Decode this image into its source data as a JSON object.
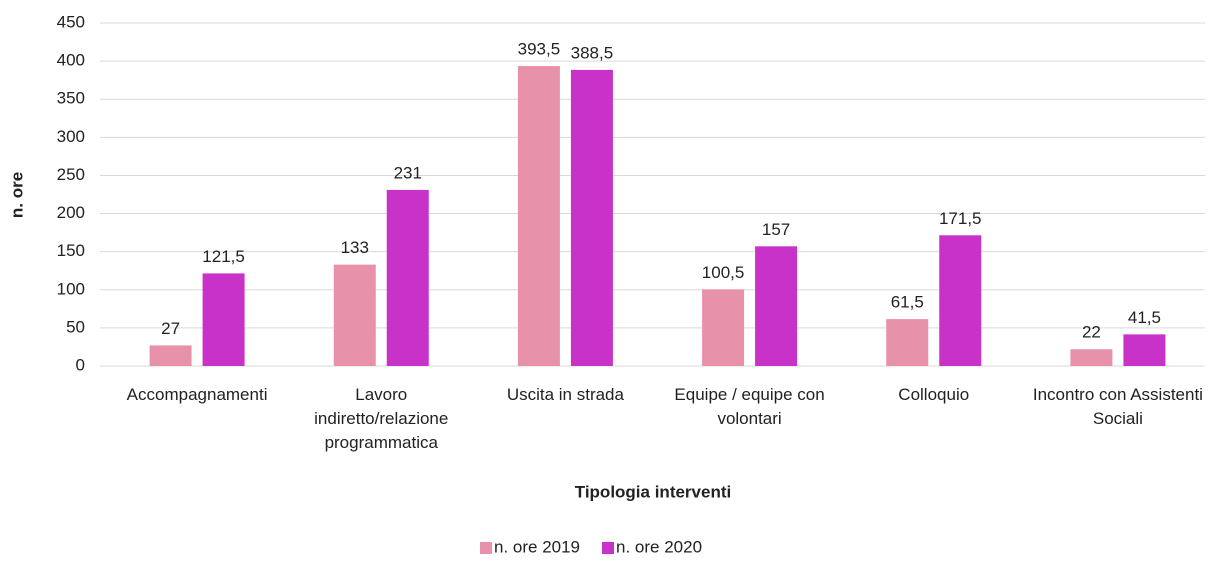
{
  "chart_data": {
    "type": "bar",
    "y_label": "n. ore",
    "x_label": "Tipologia interventi",
    "categories": [
      "Accompagnamenti",
      "Lavoro indiretto/relazione programmatica",
      "Uscita in strada",
      "Equipe / equipe con volontari",
      "Colloquio",
      "Incontro con Assistenti Sociali"
    ],
    "series": [
      {
        "name": "n. ore 2019",
        "color": "#e891aa",
        "values": [
          27,
          133,
          393.5,
          100.5,
          61.5,
          22
        ],
        "value_labels": [
          "27",
          "133",
          "393,5",
          "100,5",
          "61,5",
          "22"
        ]
      },
      {
        "name": "n. ore 2020",
        "color": "#c832c8",
        "values": [
          121.5,
          231,
          388.5,
          157,
          171.5,
          41.5
        ],
        "value_labels": [
          "121,5",
          "231",
          "388,5",
          "157",
          "171,5",
          "41,5"
        ]
      }
    ],
    "ylim": [
      0,
      450
    ],
    "yticks": [
      0,
      50,
      100,
      150,
      200,
      250,
      300,
      350,
      400,
      450
    ],
    "grid": true,
    "legend": "bottom"
  }
}
